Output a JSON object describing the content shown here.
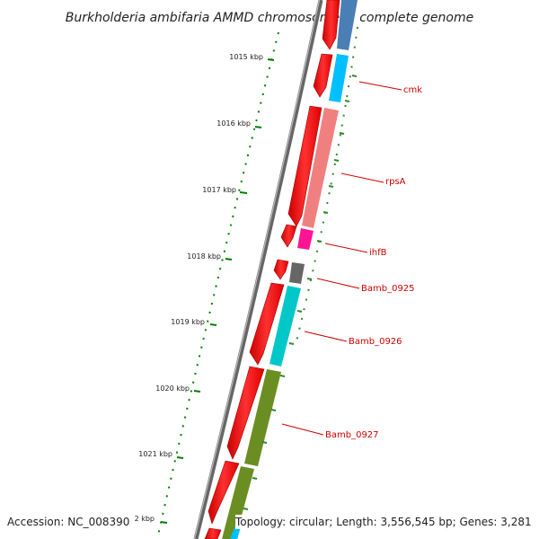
{
  "title": "Burkholderia ambifaria AMMD chromosome 1, complete genome",
  "ticks": [
    "1015 kbp",
    "1016 kbp",
    "1017 kbp",
    "1018 kbp",
    "1019 kbp",
    "1020 kbp",
    "1021 kbp",
    "2 kbp"
  ],
  "genes": [
    "cmk",
    "rpsA",
    "ihfB",
    "Bamb_0925",
    "Bamb_0926",
    "Bamb_0927"
  ],
  "accession": "Accession: NC_008390",
  "topology": "Topology: circular; Length: 3,556,545 bp; Genes: 3,281",
  "colors": {
    "backbone": "#888888",
    "strand_forward": "#ff0000",
    "tick": "#008000",
    "label": "#cc0000",
    "genes": [
      "#4a7fb5",
      "#00bfff",
      "#f08080",
      "#ff1493",
      "#666666",
      "#00c8c8",
      "#6b8e23"
    ]
  }
}
